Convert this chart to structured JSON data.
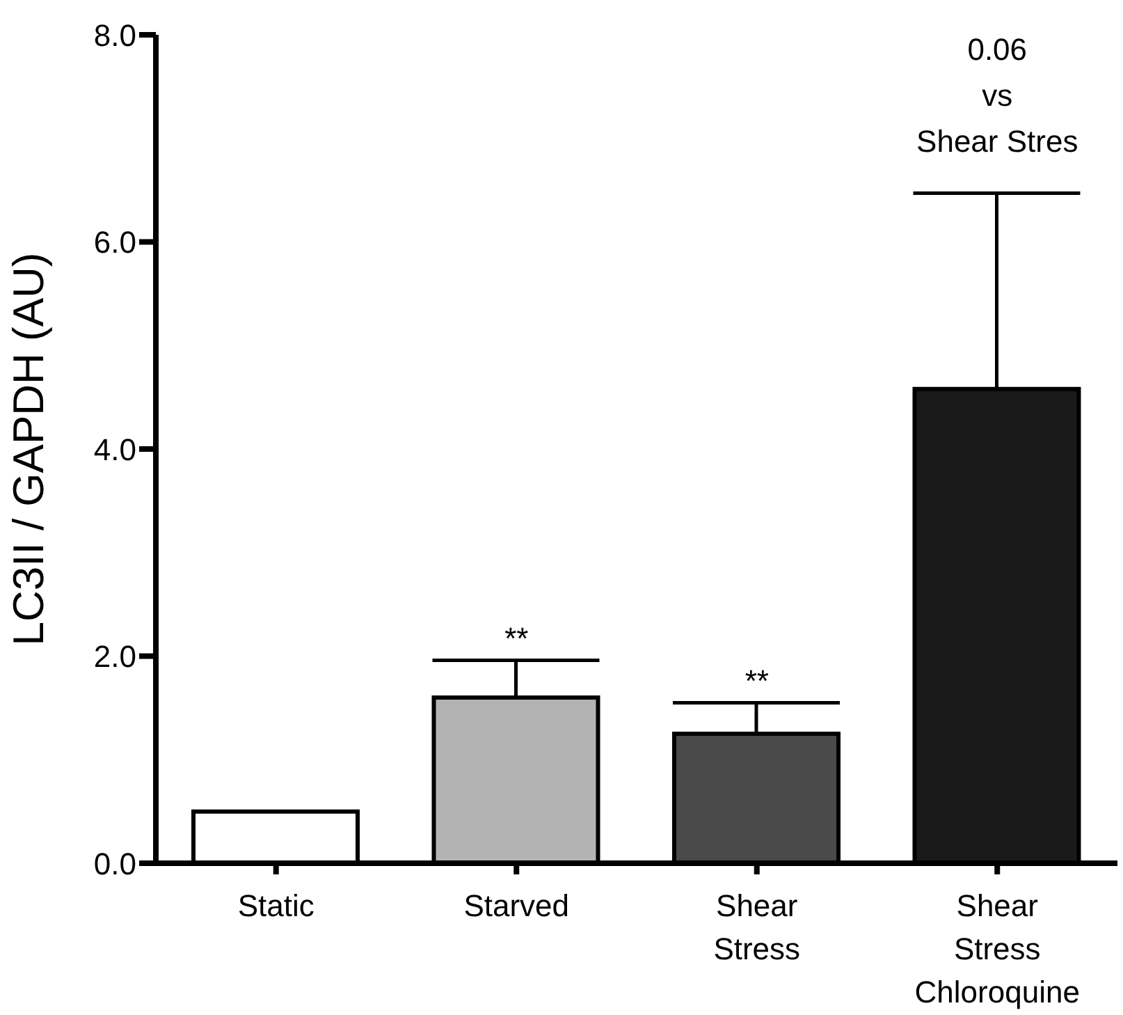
{
  "chart_data": {
    "type": "bar",
    "ylabel": "LC3II / GAPDH (AU)",
    "categories": [
      "Static",
      "Starved",
      "Shear Stress",
      "Shear Stress Chloroquine"
    ],
    "values": [
      0.5,
      1.6,
      1.25,
      4.58
    ],
    "colors": [
      "#ffffff",
      "#b3b3b3",
      "#4a4a4a",
      "#1a1a1a"
    ],
    "errors": [
      null,
      [
        1.6,
        1.96
      ],
      [
        1.25,
        1.55
      ],
      [
        4.58,
        6.47
      ]
    ],
    "ylim": [
      0,
      8
    ],
    "yticks": [
      {
        "value": 0,
        "label": "0.0"
      },
      {
        "value": 2,
        "label": "2.0"
      },
      {
        "value": 4,
        "label": "4.0"
      },
      {
        "value": 6,
        "label": "6.0"
      },
      {
        "value": 8,
        "label": "8.0"
      }
    ],
    "grid": false,
    "legend": false,
    "annotations": [
      {
        "text": "**",
        "x": "Starved",
        "y": 1.96
      },
      {
        "text": "**",
        "x": "Shear Stress",
        "y": 1.55
      },
      {
        "text": "0.06\nvs\nShear Stres",
        "x": "Shear Stress Chloroquine",
        "y": 6.47
      }
    ]
  }
}
